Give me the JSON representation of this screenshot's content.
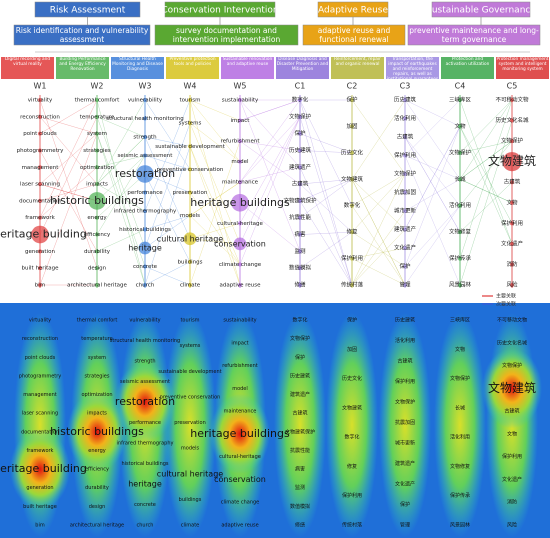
{
  "header": {
    "groups": [
      {
        "title": "Risk Assessment",
        "description": "Risk identification and vulnerability assessment",
        "color": "#3a6fc4"
      },
      {
        "title": "Conservation Intervention",
        "description": "survey documentation and intervention implementation",
        "color": "#5aa832"
      },
      {
        "title": "Adaptive Reuse",
        "description": "adaptive reuse and functional renewal",
        "color": "#e8a317"
      },
      {
        "title": "Sustainable Governance",
        "description": "preventive maintenance and long-term governance",
        "color": "#c07ad8"
      }
    ]
  },
  "columns": [
    {
      "code": "W1",
      "label": "Digital recording and virtual reality",
      "color": "#e03a3a",
      "keywords": [
        "virtuality",
        "reconstruction",
        "point clouds",
        "photogrammetry",
        "management",
        "laser scanning",
        "documentation",
        "framework",
        "heritage building",
        "generation",
        "built heritage",
        "bim"
      ]
    },
    {
      "code": "W2",
      "label": "Building Performance and Energy Efficiency Renovation",
      "color": "#4caf50",
      "keywords": [
        "thermal comfort",
        "temperature",
        "system",
        "strategies",
        "optimization",
        "impacts",
        "historic buildings",
        "energy",
        "efficiency",
        "durability",
        "design",
        "architectural heritage"
      ]
    },
    {
      "code": "W3",
      "label": "Structural Health Monitoring and Disease Diagnosis",
      "color": "#3b7dd8",
      "keywords": [
        "vulnerability",
        "structural health monitoring",
        "strength",
        "seismic assessment",
        "restoration",
        "performance",
        "infrared thermography",
        "historical buildings",
        "heritage",
        "concrete",
        "church"
      ]
    },
    {
      "code": "W4",
      "label": "Preventive protection tools and policies",
      "color": "#d6c21c",
      "keywords": [
        "tourism",
        "systems",
        "sustainable development",
        "preventive conservation",
        "preservation",
        "models",
        "cultural heritage",
        "buildings",
        "climate"
      ]
    },
    {
      "code": "W5",
      "label": "Sustainable renovation and adaptive reuse",
      "color": "#b36ae0",
      "keywords": [
        "sustainability",
        "impact",
        "refurbishment",
        "model",
        "maintenance",
        "heritage buildings",
        "cultural-heritage",
        "conservation",
        "climate change",
        "adaptive reuse"
      ]
    },
    {
      "code": "C1",
      "label": "Disease Diagnosis and Disaster Prevention and Mitigation",
      "color": "#8c6fd8",
      "keywords": [
        "数字化",
        "文物保护",
        "保护",
        "历史建筑",
        "建筑遗产",
        "古建筑",
        "文物建筑保护",
        "抗震性能",
        "病害",
        "监测",
        "数值模拟",
        "修缮"
      ]
    },
    {
      "code": "C2",
      "label": "Reinforcement, repair and organic renewal",
      "color": "#b5b53a",
      "keywords": [
        "保护",
        "加固",
        "历史文化",
        "文物建筑",
        "数字化",
        "修复",
        "保护利用",
        "传统村落"
      ]
    },
    {
      "code": "C3",
      "label": "Transportation, the impact of earthquakes and reinforcement repairs, as well as institutional guarantees",
      "color": "#9a86e0",
      "keywords": [
        "历史建筑",
        "活化利用",
        "古建筑",
        "保护利用",
        "文物保护",
        "抗震加固",
        "城市更新",
        "建筑遗产",
        "文化遗产",
        "保护",
        "管理"
      ]
    },
    {
      "code": "C4",
      "label": "Protection and activation utilization",
      "color": "#3aa64a",
      "keywords": [
        "三峡库区",
        "文物",
        "文物保护",
        "长城",
        "活化利用",
        "文物修复",
        "保护传承",
        "风景园林"
      ]
    },
    {
      "code": "C5",
      "label": "Protection management system and intelligent monitoring system",
      "color": "#d93030",
      "keywords": [
        "不可移动文物",
        "历史文化名城",
        "文物保护",
        "文物建筑",
        "古建筑",
        "文物",
        "保护利用",
        "文化遗产",
        "消防",
        "风险"
      ]
    }
  ],
  "legend": [
    {
      "label": "主要关联",
      "color": "#e03a3a"
    },
    {
      "label": "次要关联",
      "color": "#3b5bd8"
    }
  ]
}
